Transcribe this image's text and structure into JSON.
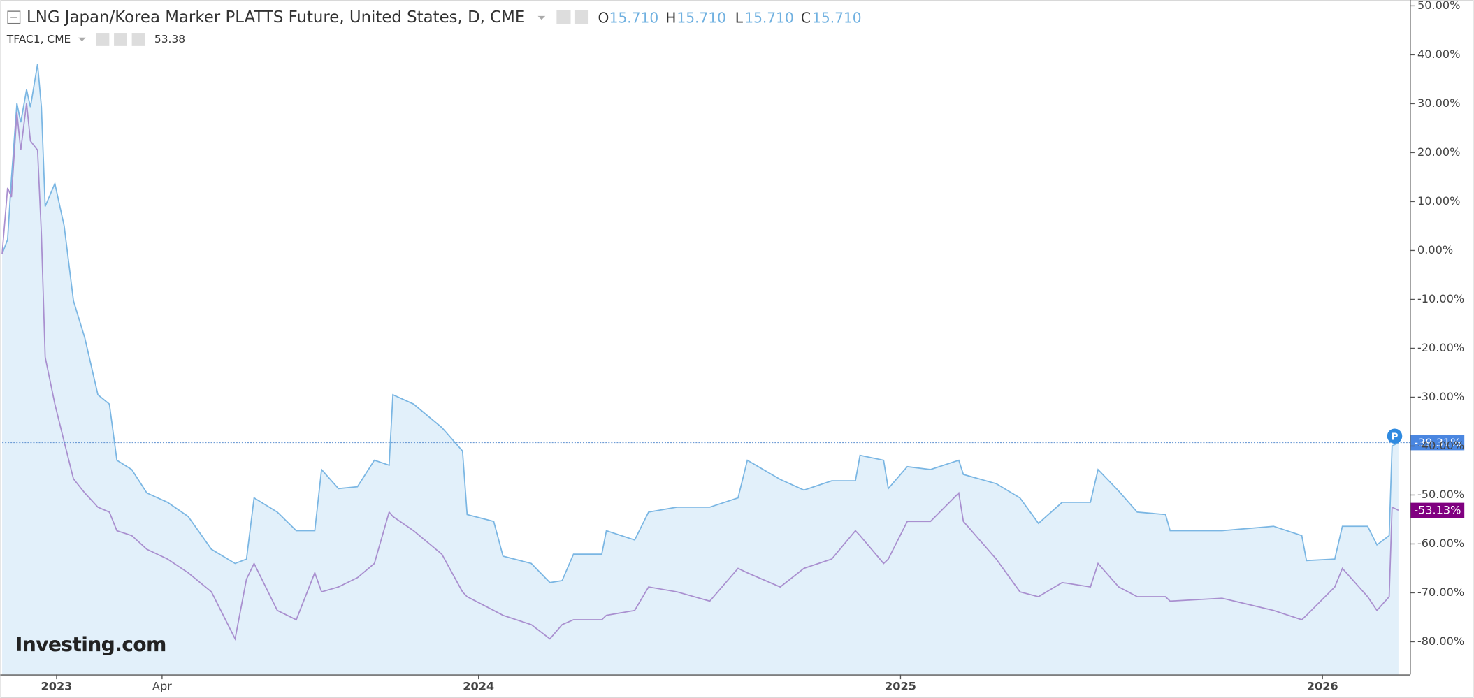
{
  "chart_data": {
    "type": "line",
    "series": [
      {
        "name": "LNG Japan/Korea Marker PLATTS Future, United States, D, CME",
        "color": "#7ab6e3",
        "fill": "#e2f0fa",
        "ohlc": [
          {
            "name": "O",
            "value": "15.710"
          },
          {
            "name": "H",
            "value": "15.710"
          },
          {
            "name": "L",
            "value": "15.710"
          },
          {
            "name": "C",
            "value": "15.710"
          }
        ],
        "last_label": "-39.31%",
        "badge_color": "#4a86e0",
        "values": [
          -0.7,
          2.2,
          14.7,
          30.1,
          26.2,
          32.9,
          29.3,
          38.1,
          29.3,
          9.0,
          13.7,
          5.0,
          -10.3,
          -17.9,
          -29.5,
          -31.4,
          -42.9,
          -44.8,
          -49.6,
          -51.5,
          -54.4,
          -61.1,
          -64.0,
          -63.1,
          -50.6,
          -53.5,
          -57.3,
          -57.3,
          -44.8,
          -48.7,
          -48.3,
          -42.9,
          -43.9,
          -29.5,
          -31.4,
          -36.2,
          -41.0,
          -54.0,
          -55.4,
          -62.5,
          -64.0,
          -67.9,
          -67.5,
          -62.1,
          -62.1,
          -57.3,
          -59.2,
          -53.5,
          -52.5,
          -52.5,
          -50.6,
          -42.9,
          -46.8,
          -49.0,
          -47.1,
          -47.1,
          -41.9,
          -42.9,
          -48.7,
          -44.2,
          -44.8,
          -42.9,
          -45.8,
          -47.7,
          -50.6,
          -55.8,
          -51.5,
          -51.5,
          -44.8,
          -49.2,
          -53.5,
          -54.0,
          -57.3,
          -57.3,
          -56.4,
          -58.3,
          -63.4,
          -63.1,
          -56.4,
          -56.4,
          -60.2,
          -58.3,
          -40.0,
          -39.31
        ]
      },
      {
        "name": "TFAC1, CME",
        "color": "#a98fcf",
        "last_price": "53.38",
        "price_color": "#7a1a7a",
        "last_label": "-53.13%",
        "badge_color": "#800080",
        "values": [
          -0.7,
          12.8,
          10.9,
          28.2,
          20.5,
          30.1,
          22.4,
          20.5,
          3.2,
          -21.8,
          -31.4,
          -39.1,
          -46.7,
          -49.6,
          -52.5,
          -53.5,
          -57.3,
          -58.3,
          -61.1,
          -63.1,
          -65.9,
          -69.8,
          -79.4,
          -67.2,
          -64.0,
          -73.6,
          -75.5,
          -65.9,
          -69.8,
          -68.8,
          -66.9,
          -64.0,
          -53.5,
          -54.4,
          -57.3,
          -62.1,
          -69.8,
          -70.8,
          -73.6,
          -74.6,
          -76.5,
          -79.4,
          -76.5,
          -75.5,
          -75.5,
          -74.6,
          -73.6,
          -68.8,
          -69.8,
          -71.7,
          -65.0,
          -65.9,
          -68.8,
          -65.0,
          -63.1,
          -57.3,
          -58.3,
          -64.0,
          -63.1,
          -55.4,
          -55.4,
          -49.6,
          -55.4,
          -63.1,
          -69.8,
          -70.8,
          -67.9,
          -68.8,
          -64.0,
          -68.8,
          -70.8,
          -70.8,
          -71.7,
          -71.1,
          -73.6,
          -75.5,
          -74.6,
          -68.8,
          -65.0,
          -70.8,
          -73.6,
          -70.8,
          -52.5,
          -53.13
        ]
      }
    ],
    "x": [
      2022.871,
      2022.884,
      2022.893,
      2022.906,
      2022.915,
      2022.929,
      2022.938,
      2022.955,
      2022.964,
      2022.973,
      2022.996,
      2023.018,
      2023.04,
      2023.067,
      2023.098,
      2023.125,
      2023.143,
      2023.178,
      2023.214,
      2023.263,
      2023.312,
      2023.367,
      2023.423,
      2023.45,
      2023.468,
      2023.523,
      2023.568,
      2023.612,
      2023.628,
      2023.668,
      2023.713,
      2023.753,
      2023.788,
      2023.797,
      2023.846,
      2023.913,
      2023.962,
      2023.973,
      2024.036,
      2024.058,
      2024.125,
      2024.169,
      2024.198,
      2024.225,
      2024.292,
      2024.303,
      2024.37,
      2024.403,
      2024.47,
      2024.548,
      2024.615,
      2024.637,
      2024.715,
      2024.771,
      2024.837,
      2024.893,
      2024.904,
      2024.96,
      2024.971,
      2025.016,
      2025.071,
      2025.138,
      2025.149,
      2025.227,
      2025.283,
      2025.327,
      2025.383,
      2025.45,
      2025.468,
      2025.517,
      2025.561,
      2025.628,
      2025.639,
      2025.762,
      2025.884,
      2025.951,
      2025.962,
      2026.029,
      2026.047,
      2026.107,
      2026.129,
      2026.158,
      2026.165,
      2026.18
    ],
    "xlim": [
      2022.871,
      2026.207
    ],
    "xticks": [
      {
        "value": 2023,
        "label": "2023"
      },
      {
        "value": 2023.25,
        "label": "Apr"
      },
      {
        "value": 2024,
        "label": "2024"
      },
      {
        "value": 2025,
        "label": "2025"
      },
      {
        "value": 2026,
        "label": "2026"
      }
    ],
    "ylim": [
      -86.7,
      51.2
    ],
    "yticks": [
      {
        "value": 50,
        "label": "50.00%"
      },
      {
        "value": 40,
        "label": "40.00%"
      },
      {
        "value": 30,
        "label": "30.00%"
      },
      {
        "value": 20,
        "label": "20.00%"
      },
      {
        "value": 10,
        "label": "10.00%"
      },
      {
        "value": 0,
        "label": "0.00%"
      },
      {
        "value": -10,
        "label": "-10.00%"
      },
      {
        "value": -20,
        "label": "-20.00%"
      },
      {
        "value": -30,
        "label": "-30.00%"
      },
      {
        "value": -40,
        "label": "-40.00%"
      },
      {
        "value": -50,
        "label": "-50.00%"
      },
      {
        "value": -60,
        "label": "-60.00%"
      },
      {
        "value": -70,
        "label": "-70.00%"
      },
      {
        "value": -80,
        "label": "-80.00%"
      }
    ],
    "grid": false,
    "marker_badge": "P",
    "watermark": "Investing.com"
  }
}
